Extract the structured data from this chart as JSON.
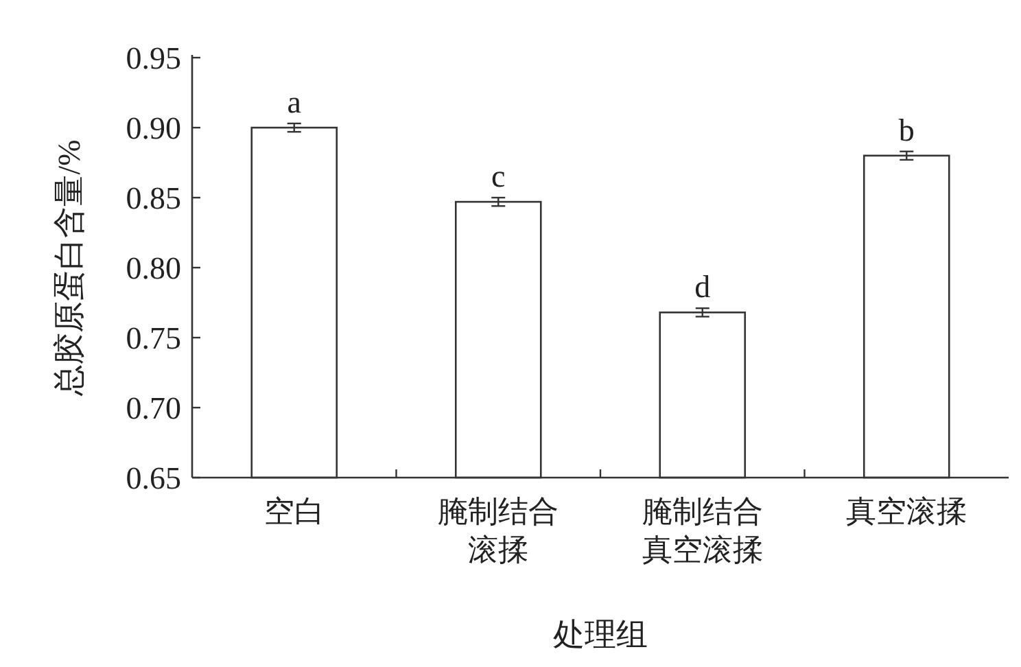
{
  "chart_data": {
    "type": "bar",
    "xlabel": "处理组",
    "ylabel": "总胶原蛋白含量/%",
    "categories": [
      "空白",
      "腌制结合滚揉",
      "腌制结合真空滚揉",
      "真空滚揉"
    ],
    "values": [
      0.9,
      0.847,
      0.768,
      0.88
    ],
    "errors": [
      0.003,
      0.003,
      0.003,
      0.003
    ],
    "color": "#ffffff",
    "ylim": [
      0.65,
      0.95
    ],
    "yticks": [
      {
        "value": 0.65,
        "label": "0.65"
      },
      {
        "value": 0.7,
        "label": "0.70"
      },
      {
        "value": 0.75,
        "label": "0.75"
      },
      {
        "value": 0.8,
        "label": "0.80"
      },
      {
        "value": 0.85,
        "label": "0.85"
      },
      {
        "value": 0.9,
        "label": "0.90"
      },
      {
        "value": 0.95,
        "label": "0.95"
      }
    ],
    "annotations": [
      {
        "text": "a",
        "x": "空白",
        "y": 0.903
      },
      {
        "text": "c",
        "x": "腌制结合滚揉",
        "y": 0.85
      },
      {
        "text": "d",
        "x": "腌制结合真空滚揉",
        "y": 0.771
      },
      {
        "text": "b",
        "x": "真空滚揉",
        "y": 0.883
      }
    ],
    "grid": false
  }
}
